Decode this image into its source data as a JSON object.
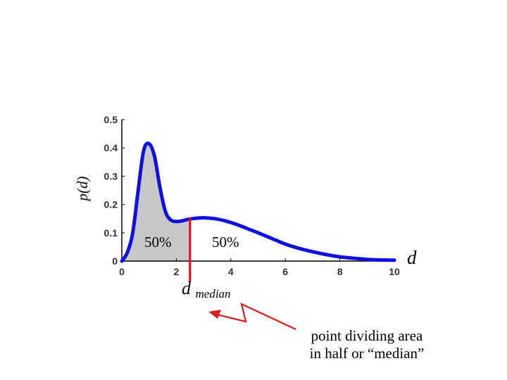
{
  "chart_data": {
    "type": "line",
    "xlabel": "d",
    "ylabel": "p(d)",
    "xlim": [
      0,
      10
    ],
    "ylim": [
      0,
      0.5
    ],
    "x_ticks": [
      0,
      2,
      4,
      6,
      8,
      10
    ],
    "y_ticks": [
      0,
      0.1,
      0.2,
      0.3,
      0.4,
      0.5
    ],
    "x_tick_labels": [
      "0",
      "2",
      "4",
      "6",
      "8",
      "10"
    ],
    "y_tick_labels": [
      "0",
      "0.1",
      "0.2",
      "0.3",
      "0.4",
      "0.5"
    ],
    "series": [
      {
        "name": "p(d)",
        "color": "#1010e0",
        "x": [
          0,
          0.2,
          0.4,
          0.6,
          0.8,
          1.0,
          1.2,
          1.4,
          1.6,
          1.8,
          2.0,
          2.2,
          2.4,
          2.6,
          2.8,
          3.0,
          3.4,
          3.8,
          4.2,
          4.6,
          5.0,
          5.5,
          6.0,
          6.5,
          7.0,
          7.5,
          8.0,
          8.5,
          9.0,
          9.5,
          10.0
        ],
        "y": [
          0.0,
          0.03,
          0.1,
          0.25,
          0.39,
          0.415,
          0.37,
          0.26,
          0.175,
          0.145,
          0.14,
          0.142,
          0.147,
          0.15,
          0.152,
          0.153,
          0.15,
          0.142,
          0.13,
          0.115,
          0.1,
          0.08,
          0.06,
          0.045,
          0.033,
          0.023,
          0.015,
          0.01,
          0.006,
          0.004,
          0.003
        ]
      }
    ],
    "median": 2.5,
    "median_label_base": "d",
    "median_label_sub": "median",
    "shaded_region": [
      0,
      2.5
    ],
    "shade_color": "#c8c8c8",
    "marker_color": "#e01010",
    "region_labels": [
      "50%",
      "50%"
    ],
    "annotation": [
      "point dividing area",
      "in half or “median”"
    ],
    "annotation_color": "#d42020"
  }
}
